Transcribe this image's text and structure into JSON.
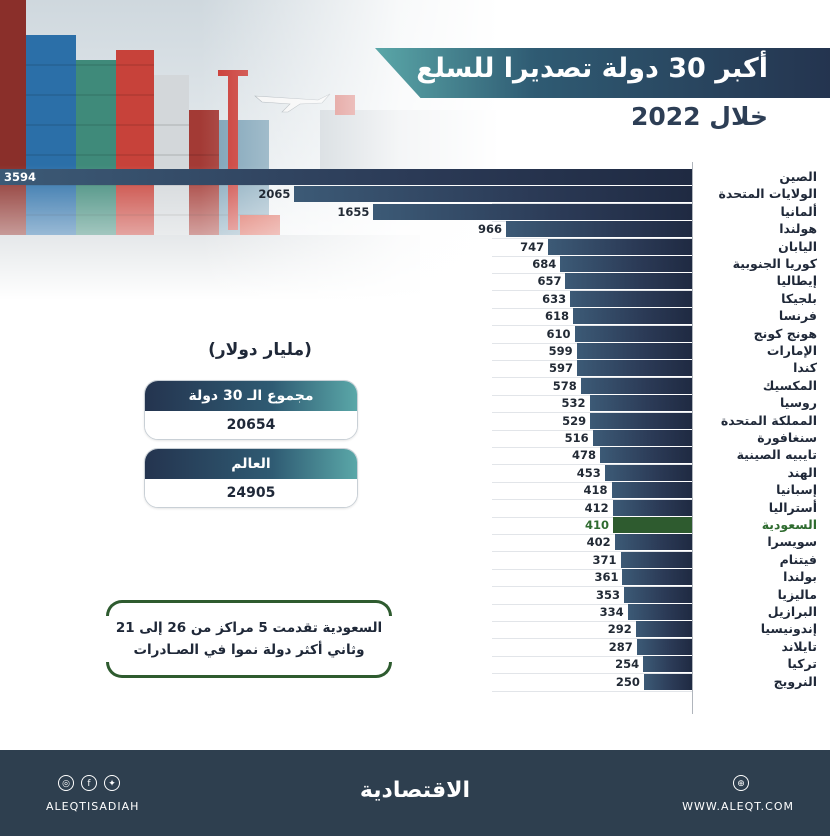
{
  "header": {
    "title": "أكبر 30 دولة تصديرا للسلع",
    "subtitle": "خلال 2022"
  },
  "summary": {
    "unit": "(مليار دولار)",
    "total30_label": "مجموع الـ 30 دولة",
    "total30_value": "20654",
    "world_label": "العالم",
    "world_value": "24905"
  },
  "note": {
    "line1": "السعودية تقدمت 5 مراكز من 26 إلى 21",
    "line2": "وثاني أكثر دولة نموا في الصـادرات"
  },
  "footer": {
    "brand": "الاقتصادية",
    "handle": "ALEQTISADIAH",
    "site": "WWW.ALEQT.COM"
  },
  "icons": [
    "instagram-icon",
    "facebook-icon",
    "twitter-icon",
    "website-icon"
  ],
  "colors": {
    "bar": "#2b3a56",
    "highlight": "#2e5b2f",
    "footer": "#2e3f4f"
  },
  "chart_data": {
    "type": "bar",
    "orientation": "horizontal",
    "highlight": "السعودية",
    "categories": [
      "الصين",
      "الولايات المتحدة",
      "ألمانيا",
      "هولندا",
      "اليابان",
      "كوريا الجنوبية",
      "إيطاليا",
      "بلجيكا",
      "فرنسا",
      "هونج كونج",
      "الإمارات",
      "كندا",
      "المكسيك",
      "روسيا",
      "المملكة المتحدة",
      "سنغافورة",
      "تايبيه الصينية",
      "الهند",
      "إسبانيا",
      "أستراليا",
      "السعودية",
      "سويسرا",
      "فيتنام",
      "بولندا",
      "ماليزيا",
      "البرازيل",
      "إندونيسيا",
      "تايلاند",
      "تركيا",
      "النرويج"
    ],
    "values": [
      3594,
      2065,
      1655,
      966,
      747,
      684,
      657,
      633,
      618,
      610,
      599,
      597,
      578,
      532,
      529,
      516,
      478,
      453,
      418,
      412,
      410,
      402,
      371,
      361,
      353,
      334,
      292,
      287,
      254,
      250
    ]
  }
}
